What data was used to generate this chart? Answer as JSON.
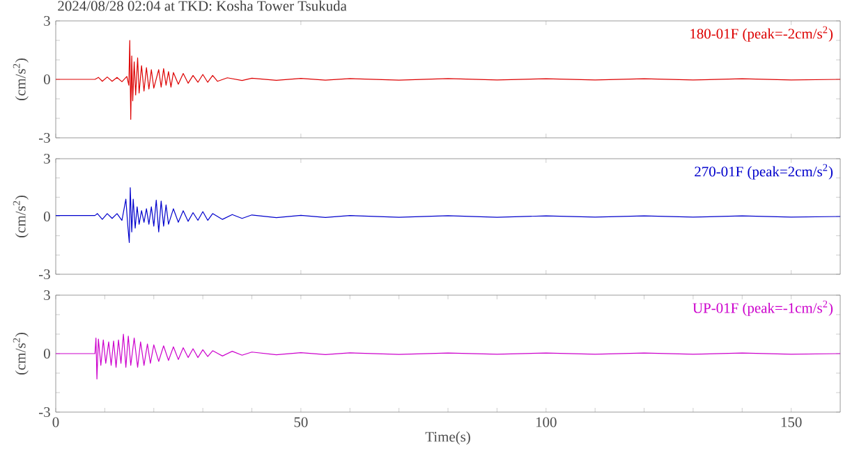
{
  "chart_data": [
    {
      "type": "line",
      "title": "2024/08/28 02:04 at TKD: Kosha Tower Tsukuda",
      "ylabel": "(cm/s$^{2}$)",
      "xlim": [
        0,
        160
      ],
      "ylim": [
        -3,
        3
      ],
      "xticks": [
        0,
        50,
        100,
        150
      ],
      "yticks": [
        3,
        {
          "value": 2,
          "label": null
        },
        {
          "value": 1,
          "label": null
        },
        0,
        {
          "value": -1,
          "label": null
        },
        {
          "value": -2,
          "label": null
        },
        -3
      ],
      "tick_labels": "y",
      "series": [
        {
          "name": "180-01F (peak=-2cm/s$^{2}$)",
          "color": "#dd0000",
          "x": [
            0,
            8,
            8.7,
            9.5,
            10.5,
            11.5,
            12.5,
            13.5,
            14.5,
            14.9,
            15.1,
            15.3,
            15.5,
            15.7,
            16,
            16.3,
            16.7,
            17,
            17.5,
            18,
            18.5,
            19,
            19.5,
            20,
            21,
            21.5,
            22,
            22.5,
            23,
            23.5,
            24,
            25,
            26,
            27,
            28,
            29,
            30,
            31,
            32,
            33,
            35,
            38,
            40,
            45,
            50,
            55,
            60,
            70,
            80,
            90,
            100,
            110,
            120,
            130,
            140,
            150,
            160
          ],
          "values": [
            0,
            0,
            0.1,
            -0.1,
            0.12,
            -0.1,
            0.1,
            -0.12,
            0.15,
            -0.3,
            2.0,
            -2.05,
            1.2,
            -1.1,
            0.9,
            -0.8,
            1.1,
            -0.7,
            0.7,
            -0.6,
            0.6,
            -0.5,
            0.5,
            -0.45,
            0.5,
            -0.4,
            0.55,
            -0.3,
            0.4,
            -0.4,
            0.35,
            -0.25,
            0.3,
            -0.2,
            0.2,
            -0.15,
            0.25,
            -0.15,
            0.2,
            -0.1,
            0.08,
            -0.06,
            0.06,
            -0.05,
            0.05,
            -0.04,
            0.04,
            -0.04,
            0.04,
            -0.03,
            0.03,
            -0.03,
            0.03,
            -0.03,
            0.03,
            -0.03,
            0
          ]
        }
      ]
    },
    {
      "type": "line",
      "ylabel": "(cm/s$^{2}$)",
      "xlim": [
        0,
        160
      ],
      "ylim": [
        -3,
        3
      ],
      "xticks": [
        0,
        50,
        100,
        150
      ],
      "yticks": [
        3,
        {
          "value": 2,
          "label": null
        },
        {
          "value": 1,
          "label": null
        },
        0,
        {
          "value": -1,
          "label": null
        },
        {
          "value": -2,
          "label": null
        },
        -3
      ],
      "tick_labels": "y",
      "series": [
        {
          "name": "270-01F (peak=2cm/s$^{2}$)",
          "color": "#0000cc",
          "x": [
            0,
            8,
            8.5,
            9.5,
            10.5,
            11.5,
            12.5,
            13.5,
            14.3,
            14.7,
            15.0,
            15.2,
            15.5,
            15.8,
            16.2,
            16.6,
            17,
            17.5,
            18,
            18.5,
            19,
            19.5,
            20,
            20.5,
            21,
            21.5,
            22,
            22.5,
            23,
            24,
            25,
            26,
            27,
            28,
            29,
            30,
            31,
            32,
            34,
            36,
            38,
            40,
            45,
            50,
            55,
            60,
            70,
            80,
            90,
            100,
            110,
            120,
            130,
            140,
            150,
            160
          ],
          "values": [
            0.05,
            0.05,
            0.15,
            -0.15,
            0.15,
            -0.1,
            0.15,
            -0.2,
            0.9,
            -0.5,
            -1.35,
            1.5,
            -0.8,
            0.9,
            -0.6,
            0.5,
            -0.4,
            0.3,
            -0.3,
            0.4,
            -0.4,
            0.5,
            -0.5,
            0.85,
            -0.8,
            0.8,
            -0.5,
            0.6,
            -0.4,
            0.4,
            -0.3,
            0.3,
            -0.25,
            0.2,
            -0.2,
            0.25,
            -0.2,
            0.15,
            -0.15,
            0.1,
            -0.1,
            0.08,
            -0.06,
            0.06,
            -0.05,
            0.05,
            -0.04,
            0.04,
            -0.04,
            0.03,
            -0.03,
            0.03,
            -0.03,
            0.03,
            -0.03,
            0
          ]
        }
      ]
    },
    {
      "type": "line",
      "xlabel": "Time(s)",
      "ylabel": "(cm/s$^{2}$)",
      "xlim": [
        0,
        160
      ],
      "ylim": [
        -3,
        3
      ],
      "xticks": [
        0,
        {
          "value": 10,
          "label": null
        },
        {
          "value": 20,
          "label": null
        },
        {
          "value": 30,
          "label": null
        },
        {
          "value": 40,
          "label": null
        },
        50,
        {
          "value": 60,
          "label": null
        },
        {
          "value": 70,
          "label": null
        },
        {
          "value": 80,
          "label": null
        },
        {
          "value": 90,
          "label": null
        },
        100,
        {
          "value": 110,
          "label": null
        },
        {
          "value": 120,
          "label": null
        },
        {
          "value": 130,
          "label": null
        },
        {
          "value": 140,
          "label": null
        },
        150
      ],
      "yticks": [
        3,
        {
          "value": 2,
          "label": null
        },
        {
          "value": 1,
          "label": null
        },
        0,
        {
          "value": -1,
          "label": null
        },
        {
          "value": -2,
          "label": null
        },
        -3
      ],
      "series": [
        {
          "name": "UP-01F (peak=-1cm/s$^{2}$)",
          "color": "#cc00cc",
          "x": [
            0,
            8,
            8.2,
            8.4,
            8.7,
            9.2,
            9.7,
            10.2,
            10.8,
            11.3,
            11.8,
            12.3,
            12.8,
            13.3,
            13.8,
            14.3,
            14.8,
            15.3,
            16,
            16.7,
            17.3,
            18,
            18.7,
            19.3,
            20,
            21,
            22,
            23,
            24,
            25,
            26,
            27,
            28,
            29,
            30,
            31,
            32,
            34,
            36,
            38,
            40,
            45,
            50,
            55,
            60,
            70,
            80,
            90,
            100,
            110,
            120,
            130,
            140,
            150,
            160
          ],
          "values": [
            0,
            0,
            0.8,
            -1.3,
            0.75,
            -0.6,
            0.7,
            -0.5,
            0.6,
            -0.6,
            0.65,
            -0.7,
            0.7,
            -0.5,
            1.0,
            -0.7,
            0.9,
            -0.6,
            0.8,
            -0.7,
            0.6,
            -0.6,
            0.5,
            -0.5,
            0.45,
            -0.4,
            0.4,
            -0.35,
            0.35,
            -0.3,
            0.3,
            -0.2,
            0.25,
            -0.2,
            0.2,
            -0.15,
            0.15,
            -0.12,
            0.12,
            -0.08,
            0.08,
            -0.06,
            0.05,
            -0.05,
            0.04,
            -0.04,
            0.03,
            -0.03,
            0.03,
            -0.03,
            0.03,
            -0.03,
            0.03,
            -0.03,
            0
          ]
        }
      ]
    }
  ]
}
